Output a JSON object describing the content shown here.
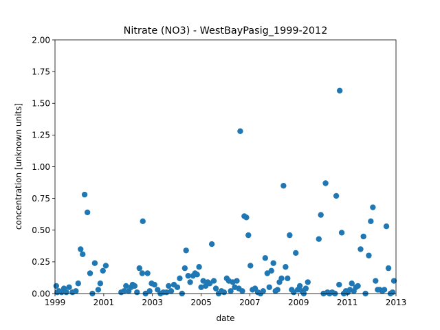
{
  "chart_data": {
    "type": "scatter",
    "title": "Nitrate (NO3) - WestBayPasig_1999-2012",
    "xlabel": "date",
    "ylabel": "concentration [unknown units]",
    "xlim": [
      "1999-01-01",
      "2013-01-01"
    ],
    "ylim": [
      0,
      2.0
    ],
    "xticks": [
      "1999",
      "2001",
      "2003",
      "2005",
      "2007",
      "2009",
      "2011",
      "2013"
    ],
    "yticks": [
      "0.00",
      "0.25",
      "0.50",
      "0.75",
      "1.00",
      "1.25",
      "1.50",
      "1.75",
      "2.00"
    ],
    "grid": false,
    "legend": "none",
    "marker_color": "#1f77b4",
    "series": [
      {
        "points": [
          [
            "1999-01-20",
            0.06
          ],
          [
            "1999-02-05",
            0.01
          ],
          [
            "1999-03-01",
            0.02
          ],
          [
            "1999-04-10",
            0.01
          ],
          [
            "1999-05-15",
            0.04
          ],
          [
            "1999-06-20",
            0.01
          ],
          [
            "1999-08-01",
            0.05
          ],
          [
            "1999-09-20",
            0.01
          ],
          [
            "1999-11-10",
            0.02
          ],
          [
            "1999-12-15",
            0.08
          ],
          [
            "2000-01-20",
            0.35
          ],
          [
            "2000-02-20",
            0.31
          ],
          [
            "2000-03-20",
            0.78
          ],
          [
            "2000-05-01",
            0.64
          ],
          [
            "2000-06-10",
            0.16
          ],
          [
            "2000-07-15",
            0.0
          ],
          [
            "2000-08-20",
            0.24
          ],
          [
            "2000-10-10",
            0.03
          ],
          [
            "2000-11-10",
            0.08
          ],
          [
            "2000-12-20",
            0.18
          ],
          [
            "2001-02-01",
            0.22
          ],
          [
            "2001-09-20",
            0.01
          ],
          [
            "2001-11-01",
            0.02
          ],
          [
            "2001-12-01",
            0.06
          ],
          [
            "2002-01-10",
            0.02
          ],
          [
            "2002-02-15",
            0.05
          ],
          [
            "2002-03-10",
            0.07
          ],
          [
            "2002-04-10",
            0.06
          ],
          [
            "2002-05-15",
            0.01
          ],
          [
            "2002-06-20",
            0.2
          ],
          [
            "2002-08-01",
            0.16
          ],
          [
            "2002-08-10",
            0.57
          ],
          [
            "2002-09-20",
            0.0
          ],
          [
            "2002-10-20",
            0.16
          ],
          [
            "2002-11-20",
            0.02
          ],
          [
            "2002-12-20",
            0.08
          ],
          [
            "2003-02-01",
            0.07
          ],
          [
            "2003-03-20",
            0.03
          ],
          [
            "2003-05-01",
            0.0
          ],
          [
            "2003-06-15",
            0.01
          ],
          [
            "2003-08-01",
            0.01
          ],
          [
            "2003-09-01",
            0.06
          ],
          [
            "2003-10-10",
            0.02
          ],
          [
            "2003-11-20",
            0.07
          ],
          [
            "2004-01-10",
            0.05
          ],
          [
            "2004-02-15",
            0.12
          ],
          [
            "2004-03-20",
            0.0
          ],
          [
            "2004-05-01",
            0.2
          ],
          [
            "2004-05-20",
            0.34
          ],
          [
            "2004-06-20",
            0.14
          ],
          [
            "2004-07-20",
            0.09
          ],
          [
            "2004-09-01",
            0.14
          ],
          [
            "2004-10-01",
            0.16
          ],
          [
            "2004-11-01",
            0.15
          ],
          [
            "2004-12-01",
            0.21
          ],
          [
            "2005-01-01",
            0.05
          ],
          [
            "2005-02-01",
            0.1
          ],
          [
            "2005-03-10",
            0.06
          ],
          [
            "2005-04-10",
            0.09
          ],
          [
            "2005-05-10",
            0.08
          ],
          [
            "2005-06-10",
            0.39
          ],
          [
            "2005-07-10",
            0.1
          ],
          [
            "2005-08-10",
            0.04
          ],
          [
            "2005-09-20",
            0.0
          ],
          [
            "2005-11-01",
            0.02
          ],
          [
            "2005-12-10",
            0.01
          ],
          [
            "2006-01-20",
            0.12
          ],
          [
            "2006-02-20",
            0.1
          ],
          [
            "2006-03-20",
            0.02
          ],
          [
            "2006-04-20",
            0.09
          ],
          [
            "2006-05-20",
            0.05
          ],
          [
            "2006-06-20",
            0.1
          ],
          [
            "2006-07-20",
            0.04
          ],
          [
            "2006-08-10",
            1.28
          ],
          [
            "2006-09-10",
            0.02
          ],
          [
            "2006-10-10",
            0.61
          ],
          [
            "2006-11-10",
            0.6
          ],
          [
            "2006-12-10",
            0.46
          ],
          [
            "2007-01-10",
            0.22
          ],
          [
            "2007-02-10",
            0.03
          ],
          [
            "2007-03-20",
            0.04
          ],
          [
            "2007-05-01",
            0.01
          ],
          [
            "2007-06-10",
            0.0
          ],
          [
            "2007-07-20",
            0.02
          ],
          [
            "2007-08-20",
            0.28
          ],
          [
            "2007-09-20",
            0.16
          ],
          [
            "2007-10-20",
            0.05
          ],
          [
            "2007-11-20",
            0.18
          ],
          [
            "2007-12-20",
            0.24
          ],
          [
            "2008-01-20",
            0.02
          ],
          [
            "2008-02-20",
            0.03
          ],
          [
            "2008-03-20",
            0.09
          ],
          [
            "2008-04-20",
            0.12
          ],
          [
            "2008-05-20",
            0.85
          ],
          [
            "2008-06-20",
            0.21
          ],
          [
            "2008-07-20",
            0.12
          ],
          [
            "2008-08-20",
            0.46
          ],
          [
            "2008-09-20",
            0.03
          ],
          [
            "2008-10-20",
            0.01
          ],
          [
            "2008-11-20",
            0.32
          ],
          [
            "2008-12-20",
            0.03
          ],
          [
            "2009-01-20",
            0.06
          ],
          [
            "2009-02-20",
            0.02
          ],
          [
            "2009-03-20",
            0.0
          ],
          [
            "2009-04-20",
            0.04
          ],
          [
            "2009-05-20",
            0.09
          ],
          [
            "2009-11-01",
            0.43
          ],
          [
            "2009-12-01",
            0.62
          ],
          [
            "2010-01-10",
            0.0
          ],
          [
            "2010-02-10",
            0.87
          ],
          [
            "2010-03-10",
            0.01
          ],
          [
            "2010-04-10",
            0.0
          ],
          [
            "2010-05-20",
            0.01
          ],
          [
            "2010-07-01",
            0.0
          ],
          [
            "2010-07-20",
            0.77
          ],
          [
            "2010-09-01",
            0.07
          ],
          [
            "2010-09-10",
            1.6
          ],
          [
            "2010-10-10",
            0.48
          ],
          [
            "2010-11-10",
            0.0
          ],
          [
            "2010-12-10",
            0.02
          ],
          [
            "2011-01-10",
            0.01
          ],
          [
            "2011-02-10",
            0.03
          ],
          [
            "2011-03-10",
            0.08
          ],
          [
            "2011-04-10",
            0.02
          ],
          [
            "2011-05-10",
            0.05
          ],
          [
            "2011-06-10",
            0.06
          ],
          [
            "2011-07-20",
            0.35
          ],
          [
            "2011-09-01",
            0.45
          ],
          [
            "2011-10-01",
            0.0
          ],
          [
            "2011-11-20",
            0.3
          ],
          [
            "2011-12-20",
            0.57
          ],
          [
            "2012-01-20",
            0.68
          ],
          [
            "2012-03-01",
            0.1
          ],
          [
            "2012-04-01",
            0.03
          ],
          [
            "2012-05-01",
            0.03
          ],
          [
            "2012-06-10",
            0.02
          ],
          [
            "2012-07-10",
            0.03
          ],
          [
            "2012-08-10",
            0.53
          ],
          [
            "2012-09-10",
            0.2
          ],
          [
            "2012-10-10",
            0.0
          ],
          [
            "2012-11-10",
            0.01
          ],
          [
            "2012-12-01",
            0.1
          ]
        ]
      }
    ]
  }
}
